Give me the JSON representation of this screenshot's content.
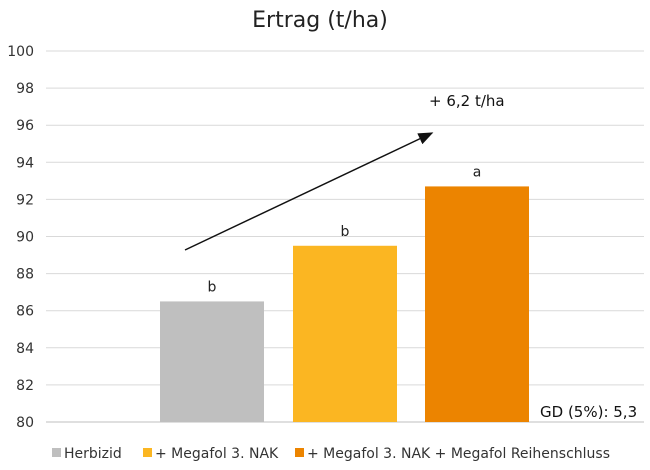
{
  "chart_data": {
    "type": "bar",
    "title": "Ertrag (t/ha)",
    "categories": [
      "Herbizid",
      "+ Megafol 3. NAK",
      "+ Megafol 3. NAK + Megafol Reihenschluss"
    ],
    "values": [
      86.5,
      89.5,
      92.7
    ],
    "bar_labels": [
      "b",
      "b",
      "a"
    ],
    "colors": [
      "#bfbfbf",
      "#fbb622",
      "#ec8400"
    ],
    "ylim": [
      80,
      100
    ],
    "yticks": [
      80,
      82,
      84,
      86,
      88,
      90,
      92,
      94,
      96,
      98,
      100
    ],
    "grid": true,
    "legend_position": "bottom",
    "annotations": {
      "increase": "+ 6,2 t/ha",
      "lsd": "GD (5%): 5,3"
    }
  }
}
